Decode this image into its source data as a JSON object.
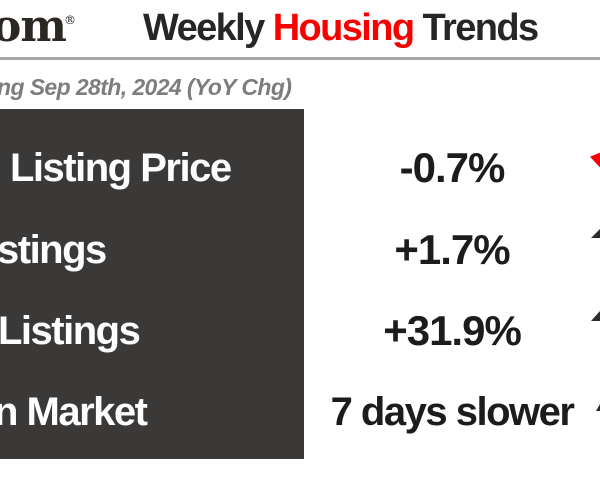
{
  "colors": {
    "accent_red": "#f60000",
    "panel_bg": "#3b3838",
    "title_dark": "#272525",
    "value_dark": "#1d1b1b",
    "subtitle_gray": "#7d7d7d",
    "divider_gray": "#a6a6a6",
    "label_white": "#fdfdfd",
    "logo_dark": "#2b2723",
    "indicator_dark": "#2e2b2b"
  },
  "logo": {
    "text": "om",
    "trademark": "®"
  },
  "header": {
    "title_prefix": "Weekly",
    "title_accent": "Housing",
    "title_suffix": "Trends"
  },
  "subtitle": "ng Sep 28th, 2024 (YoY Chg)",
  "metrics": {
    "rows": [
      {
        "label": "Listing Price",
        "value": "-0.7%",
        "indicator": "down-arrow-red"
      },
      {
        "label": "stings",
        "value": "+1.7%",
        "indicator": "up-arrow-dark"
      },
      {
        "label": "Listings",
        "value": "+31.9%",
        "indicator": "up-arrow-dark"
      },
      {
        "label": "n Market",
        "value": "7 days slower",
        "indicator": "up-arrow-dark"
      }
    ]
  },
  "chart_data": {
    "type": "table",
    "title": "Weekly Housing Trends",
    "subtitle": "ng Sep 28th, 2024 (YoY Chg)",
    "columns": [
      "metric",
      "yoy_change"
    ],
    "rows": [
      [
        "Listing Price",
        "-0.7%"
      ],
      [
        "stings",
        "+1.7%"
      ],
      [
        "Listings",
        "+31.9%"
      ],
      [
        "n Market",
        "7 days slower"
      ]
    ],
    "notes": "Infographic cropped at left and right edges; red down-arrow tip beside -0.7%, dark up-arrow tips beside +1.7%, +31.9% and 7 days slower"
  }
}
